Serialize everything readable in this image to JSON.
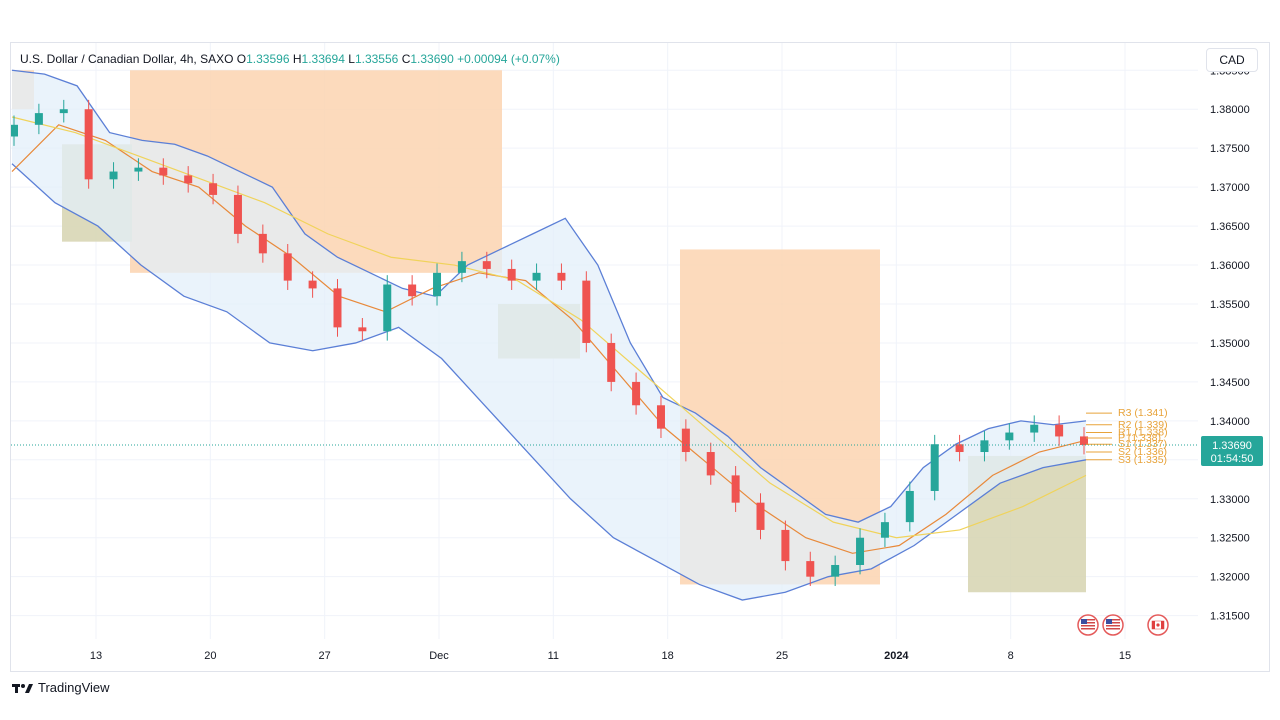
{
  "header": {
    "symbol": "U.S. Dollar / Canadian Dollar, 4h, SAXO",
    "o_label": "O",
    "o": "1.33596",
    "h_label": "H",
    "h": "1.33694",
    "l_label": "L",
    "l": "1.33556",
    "c_label": "C",
    "c": "1.33690",
    "change": "+0.00094 (+0.07%)"
  },
  "currency_button": "CAD",
  "price_label": {
    "price": "1.33690",
    "countdown": "01:54:50"
  },
  "pivot_labels": [
    "R3 (1.341)",
    "R2 (1.339)",
    "R1 (1.338)",
    "P (1.338)",
    "S1 (1.337)",
    "S2 (1.336)",
    "S3 (1.335)"
  ],
  "brand": "TradingView",
  "colors": {
    "up": "#26a69a",
    "down": "#ef5350",
    "band": "#5b7fd6",
    "ema": "#e8893a",
    "sma": "#f0d35a",
    "supply": "#fbd3b0",
    "demand": "#d6d4b0",
    "pivot": "#e8a33a"
  },
  "icons": [
    "us-flag-icon",
    "us-flag-icon",
    "canada-flag-icon"
  ],
  "chart_data": {
    "type": "line",
    "subtype": "candlestick",
    "title": "U.S. Dollar / Canadian Dollar, 4h, SAXO",
    "xlabel": "",
    "ylabel": "",
    "ylim": [
      1.312,
      1.3885
    ],
    "y_ticks": [
      "1.38500",
      "1.38000",
      "1.37500",
      "1.37000",
      "1.36500",
      "1.36000",
      "1.35500",
      "1.35000",
      "1.34500",
      "1.34000",
      "1.33500",
      "1.33000",
      "1.32500",
      "1.32000",
      "1.31500"
    ],
    "x_ticks": [
      "13",
      "20",
      "27",
      "Dec",
      "11",
      "18",
      "25",
      "2024",
      "8",
      "15"
    ],
    "grid": true,
    "series": [
      {
        "name": "Close",
        "x": [
          "Nov 10",
          "Nov 13",
          "Nov 14",
          "Nov 15",
          "Nov 16",
          "Nov 17",
          "Nov 20",
          "Nov 21",
          "Nov 22",
          "Nov 23",
          "Nov 24",
          "Nov 27",
          "Nov 28",
          "Nov 29",
          "Nov 30",
          "Dec 1",
          "Dec 4",
          "Dec 5",
          "Dec 6",
          "Dec 7",
          "Dec 8",
          "Dec 11",
          "Dec 12",
          "Dec 13",
          "Dec 14",
          "Dec 15",
          "Dec 18",
          "Dec 19",
          "Dec 20",
          "Dec 21",
          "Dec 22",
          "Dec 26",
          "Dec 27",
          "Dec 28",
          "Dec 29",
          "Jan 2",
          "Jan 3",
          "Jan 4",
          "Jan 5",
          "Jan 8",
          "Jan 9",
          "Jan 10",
          "Jan 11",
          "Jan 12"
        ],
        "values": [
          1.378,
          1.3795,
          1.38,
          1.371,
          1.372,
          1.3725,
          1.3715,
          1.3705,
          1.369,
          1.364,
          1.3615,
          1.358,
          1.357,
          1.352,
          1.3515,
          1.3575,
          1.356,
          1.359,
          1.3605,
          1.3595,
          1.358,
          1.359,
          1.358,
          1.35,
          1.345,
          1.342,
          1.339,
          1.336,
          1.333,
          1.3295,
          1.326,
          1.322,
          1.32,
          1.3215,
          1.325,
          1.327,
          1.331,
          1.337,
          1.336,
          1.3375,
          1.3385,
          1.3395,
          1.338,
          1.3369
        ]
      },
      {
        "name": "Upper band",
        "values": [
          1.385,
          1.3845,
          1.383,
          1.377,
          1.376,
          1.3755,
          1.374,
          1.372,
          1.37,
          1.364,
          1.361,
          1.359,
          1.357,
          1.356,
          1.36,
          1.362,
          1.364,
          1.366,
          1.36,
          1.35,
          1.343,
          1.341,
          1.338,
          1.334,
          1.331,
          1.328,
          1.327,
          1.329,
          1.334,
          1.337,
          1.339,
          1.34,
          1.3395,
          1.34
        ]
      },
      {
        "name": "Lower band",
        "values": [
          1.373,
          1.368,
          1.365,
          1.36,
          1.356,
          1.354,
          1.35,
          1.349,
          1.35,
          1.352,
          1.348,
          1.342,
          1.336,
          1.33,
          1.325,
          1.322,
          1.319,
          1.317,
          1.318,
          1.32,
          1.321,
          1.324,
          1.328,
          1.332,
          1.334,
          1.335
        ]
      },
      {
        "name": "EMA",
        "values": [
          1.372,
          1.378,
          1.376,
          1.372,
          1.37,
          1.365,
          1.361,
          1.356,
          1.354,
          1.357,
          1.359,
          1.358,
          1.353,
          1.346,
          1.339,
          1.334,
          1.329,
          1.325,
          1.323,
          1.324,
          1.328,
          1.333,
          1.336,
          1.3375
        ]
      },
      {
        "name": "SMA",
        "values": [
          1.379,
          1.377,
          1.374,
          1.371,
          1.368,
          1.364,
          1.361,
          1.36,
          1.358,
          1.353,
          1.346,
          1.339,
          1.332,
          1.327,
          1.325,
          1.326,
          1.329,
          1.333
        ]
      }
    ],
    "zones": [
      {
        "kind": "supply",
        "ymin": 1.38,
        "ymax": 1.385
      },
      {
        "kind": "supply",
        "ymin": 1.359,
        "ymax": 1.385
      },
      {
        "kind": "supply",
        "ymin": 1.319,
        "ymax": 1.362
      },
      {
        "kind": "demand",
        "ymin": 1.363,
        "ymax": 1.3755
      },
      {
        "kind": "demand",
        "ymin": 1.348,
        "ymax": 1.355
      },
      {
        "kind": "demand",
        "ymin": 1.318,
        "ymax": 1.3355
      }
    ],
    "pivots": [
      1.341,
      1.3395,
      1.3385,
      1.3378,
      1.337,
      1.336,
      1.335
    ],
    "last_price": 1.3369
  }
}
